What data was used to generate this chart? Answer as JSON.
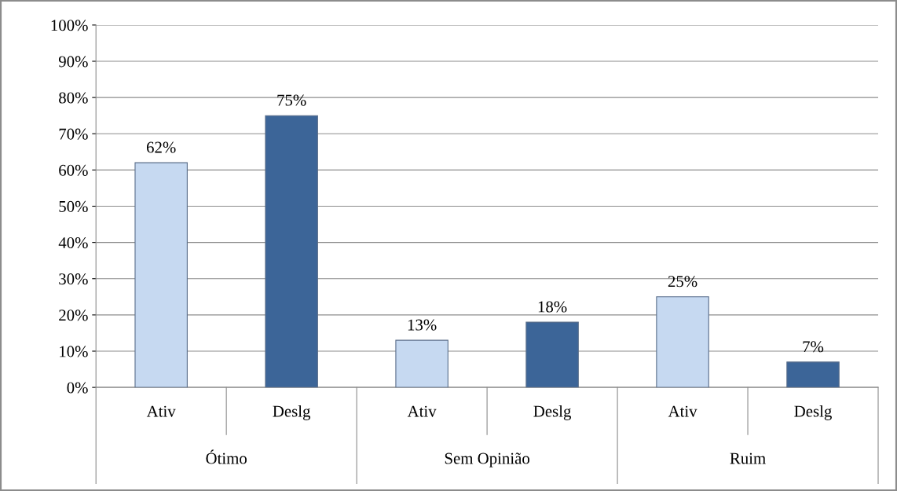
{
  "chart_data": {
    "type": "bar",
    "categories": [
      "Ótimo",
      "Sem Opinião",
      "Ruim"
    ],
    "series": [
      {
        "name": "Ativ",
        "color": "#c6d9f1",
        "values": [
          62,
          13,
          25
        ],
        "value_labels": [
          "62%",
          "13%",
          "25%"
        ]
      },
      {
        "name": "Deslg",
        "color": "#3c6598",
        "values": [
          75,
          18,
          7
        ],
        "value_labels": [
          "75%",
          "18%",
          "7%"
        ]
      }
    ],
    "ylim": [
      0,
      100
    ],
    "yticks": [
      {
        "value": 0,
        "label": "0%"
      },
      {
        "value": 10,
        "label": "10%"
      },
      {
        "value": 20,
        "label": "20%"
      },
      {
        "value": 30,
        "label": "30%"
      },
      {
        "value": 40,
        "label": "40%"
      },
      {
        "value": 50,
        "label": "50%"
      },
      {
        "value": 60,
        "label": "60%"
      },
      {
        "value": 70,
        "label": "70%"
      },
      {
        "value": 80,
        "label": "80%"
      },
      {
        "value": 90,
        "label": "90%"
      },
      {
        "value": 100,
        "label": "100%"
      }
    ],
    "grid": "y",
    "legend": false
  }
}
